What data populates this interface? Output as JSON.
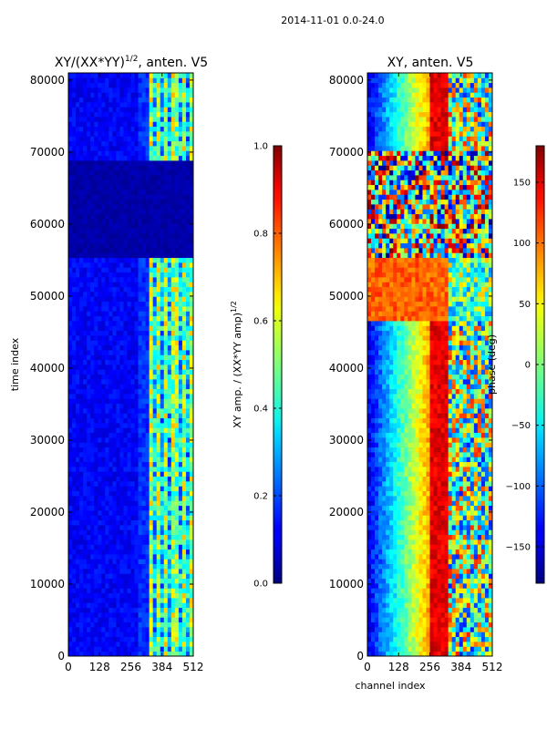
{
  "figure": {
    "suptitle": "2014-11-01 0.0-24.0"
  },
  "chart_data": [
    {
      "type": "heatmap",
      "title": "XY/(XX*YY)^1/2, anten. V5",
      "title_main": "XY/(XX*YY)",
      "title_exp": "1/2",
      "title_tail": ", anten. V5",
      "xlabel": "",
      "ylabel": "time index",
      "xlim": [
        0,
        512
      ],
      "ylim": [
        0,
        81000
      ],
      "xticks": [
        0,
        128,
        256,
        384,
        512
      ],
      "yticks": [
        0,
        10000,
        20000,
        30000,
        40000,
        50000,
        60000,
        70000,
        80000
      ],
      "colorscale": "jet",
      "colorbar": {
        "label": "XY amp. / (XX*YY amp)^1/2",
        "label_main": "XY amp. / (XX*YY amp)",
        "label_exp": "1/2",
        "range": [
          0.0,
          1.0
        ],
        "ticks": [
          0.0,
          0.2,
          0.4,
          0.6,
          0.8,
          1.0
        ],
        "tick_labels": [
          "0.0",
          "0.2",
          "0.4",
          "0.6",
          "0.8",
          "1.0"
        ]
      },
      "description": "Mostly low amplitude (~0.1) across channels 0-330; higher amplitude (0.3-0.7) banded structure in channels ~330-480; near-zero region for time index ~55000-69000 with sparse points"
    },
    {
      "type": "heatmap",
      "title": "XY, anten. V5",
      "xlabel": "channel index",
      "ylabel": "",
      "xlim": [
        0,
        512
      ],
      "ylim": [
        0,
        81000
      ],
      "xticks": [
        0,
        128,
        256,
        384,
        512
      ],
      "yticks": [
        0,
        10000,
        20000,
        30000,
        40000,
        50000,
        60000,
        70000,
        80000
      ],
      "colorscale": "jet",
      "colorbar": {
        "label": "phase (deg)",
        "range": [
          -180,
          180
        ],
        "ticks": [
          -150,
          -100,
          -50,
          0,
          50,
          100,
          150
        ],
        "tick_labels": [
          "−150",
          "−100",
          "−50",
          "0",
          "50",
          "100",
          "150"
        ]
      },
      "description": "Phase ramps from about -150 deg at channel 0 to about +150 deg near channel 320, then varied structure; noisy random phase for time index ~55000-70000; warm (~100 deg) phase block around 47000-55000"
    }
  ]
}
